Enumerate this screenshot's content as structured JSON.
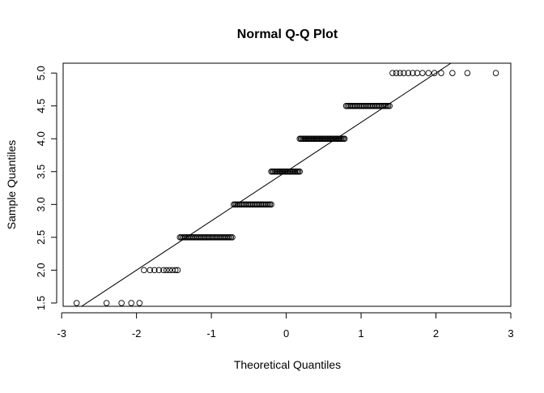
{
  "chart_data": {
    "type": "scatter",
    "title": "Normal Q-Q Plot",
    "xlabel": "Theoretical Quantiles",
    "ylabel": "Sample Quantiles",
    "xlim": [
      -2.98,
      3.0
    ],
    "ylim": [
      1.45,
      5.15
    ],
    "x_ticks": [
      -3,
      -2,
      -1,
      0,
      1,
      2,
      3
    ],
    "y_ticks": [
      1.5,
      2.0,
      2.5,
      3.0,
      3.5,
      4.0,
      4.5,
      5.0
    ],
    "x_tick_labels": [
      "-3",
      "-2",
      "-1",
      "0",
      "1",
      "2",
      "3"
    ],
    "y_tick_labels": [
      "1.5",
      "2.0",
      "2.5",
      "3.0",
      "3.5",
      "4.0",
      "4.5",
      "5.0"
    ],
    "grid": false,
    "reference_line": {
      "x": [
        -3.0,
        2.2
      ],
      "y": [
        1.25,
        5.15
      ]
    },
    "groups": [
      {
        "y": 1.5,
        "x": [
          -2.8,
          -2.4,
          -2.2,
          -2.07,
          -1.96
        ]
      },
      {
        "y": 2.0,
        "x": [
          -1.9,
          -1.82,
          -1.76,
          -1.7,
          -1.64,
          -1.6,
          -1.56,
          -1.52,
          -1.48,
          -1.45
        ]
      },
      {
        "y": 2.5,
        "x_range": [
          -1.42,
          -0.72
        ],
        "count": 40
      },
      {
        "y": 3.0,
        "x_range": [
          -0.7,
          -0.2
        ],
        "count": 30
      },
      {
        "y": 3.5,
        "x_range": [
          -0.2,
          0.18
        ],
        "count": 25
      },
      {
        "y": 4.0,
        "x_range": [
          0.18,
          0.78
        ],
        "count": 40
      },
      {
        "y": 4.5,
        "x_range": [
          0.8,
          1.38
        ],
        "count": 35
      },
      {
        "y": 5.0,
        "x": [
          1.42,
          1.47,
          1.52,
          1.57,
          1.63,
          1.69,
          1.75,
          1.82,
          1.9,
          1.98,
          2.07,
          2.22,
          2.42,
          2.8
        ]
      }
    ]
  }
}
